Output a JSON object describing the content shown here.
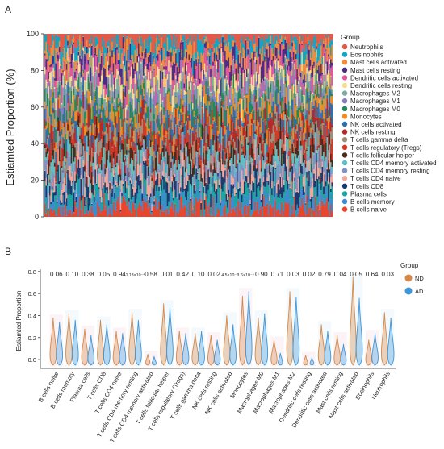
{
  "panelA": {
    "label": "A",
    "ylabel": "Estiamted Proportion (%)",
    "yticks": [
      "0",
      "20",
      "40",
      "60",
      "80",
      "100"
    ],
    "legend_title": "Group",
    "chart_data": {
      "type": "bar",
      "stacked": true,
      "samples": 240,
      "ylim": [
        0,
        100
      ],
      "note_values": "per-sample stacked proportions, approximately uniform mix across 22 cell types",
      "series": [
        {
          "name": "Neutrophils",
          "color": "#e15a4a"
        },
        {
          "name": "Eosinophils",
          "color": "#12a5c4"
        },
        {
          "name": "Mast cells activated",
          "color": "#ee8e3c"
        },
        {
          "name": "Mast cells resting",
          "color": "#4b2d83"
        },
        {
          "name": "Dendritic cells activated",
          "color": "#e2589a"
        },
        {
          "name": "Dendritic cells resting",
          "color": "#f5dc8f"
        },
        {
          "name": "Macrophages M2",
          "color": "#7faaa3"
        },
        {
          "name": "Macrophages M1",
          "color": "#8580c0"
        },
        {
          "name": "Macrophages M0",
          "color": "#25885a"
        },
        {
          "name": "Monocytes",
          "color": "#f08c1e"
        },
        {
          "name": "NK cells activated",
          "color": "#2d6fae"
        },
        {
          "name": "NK cells resting",
          "color": "#b22a2a"
        },
        {
          "name": "T cells gamma delta",
          "color": "#9c9079"
        },
        {
          "name": "T cells regulatory (Tregs)",
          "color": "#d03a27"
        },
        {
          "name": "T cells follicular helper",
          "color": "#4a2b1c"
        },
        {
          "name": "T cells CD4 memory activated",
          "color": "#5fc0c3"
        },
        {
          "name": "T cells CD4 memory resting",
          "color": "#7f92c3"
        },
        {
          "name": "T cells CD4 naive",
          "color": "#f3a79a"
        },
        {
          "name": "T cells CD8",
          "color": "#20386d"
        },
        {
          "name": "Plasma cells",
          "color": "#1ba4a0"
        },
        {
          "name": "B cells memory",
          "color": "#3c8ccf"
        },
        {
          "name": "B cells naive",
          "color": "#e8452c"
        }
      ]
    }
  },
  "panelB": {
    "label": "B",
    "ylabel": "Estiamted Proportion",
    "yticks": [
      "0.0",
      "0.2",
      "0.4",
      "0.6",
      "0.8"
    ],
    "legend_title": "Group",
    "chart_data": {
      "type": "violin",
      "ylim": [
        -0.08,
        0.85
      ],
      "groups": [
        {
          "name": "ND",
          "color": "#d4894a"
        },
        {
          "name": "AD",
          "color": "#3f97d8"
        }
      ],
      "categories": [
        {
          "name": "B cells naive",
          "p": "0.06",
          "max": [
            0.38,
            0.34
          ]
        },
        {
          "name": "B cells memory",
          "p": "0.10",
          "max": [
            0.42,
            0.36
          ]
        },
        {
          "name": "Plasma cells",
          "p": "0.38",
          "max": [
            0.28,
            0.22
          ]
        },
        {
          "name": "T cells CD8",
          "p": "0.05",
          "max": [
            0.36,
            0.32
          ]
        },
        {
          "name": "T cells CD4 naive",
          "p": "0.94",
          "max": [
            0.26,
            0.24
          ]
        },
        {
          "name": "T cells CD4 memory resting",
          "p": "1.13×10⁻⁴",
          "max": [
            0.43,
            0.36
          ]
        },
        {
          "name": "T cells CD4 memory activated",
          "p": "0.58",
          "max": [
            0.05,
            0.03
          ]
        },
        {
          "name": "T cells follicular helper",
          "p": "0.01",
          "max": [
            0.51,
            0.48
          ]
        },
        {
          "name": "T cells regulatory (Tregs)",
          "p": "0.42",
          "max": [
            0.26,
            0.24
          ]
        },
        {
          "name": "T cells gamma delta",
          "p": "0.10",
          "max": [
            0.24,
            0.26
          ]
        },
        {
          "name": "NK cells resting",
          "p": "0.02",
          "max": [
            0.22,
            0.18
          ]
        },
        {
          "name": "NK cells activated",
          "p": "4.5×10⁻⁵",
          "max": [
            0.4,
            0.32
          ]
        },
        {
          "name": "Monocytes",
          "p": "1.6×10⁻⁴",
          "max": [
            0.58,
            0.62
          ]
        },
        {
          "name": "Macrophages M0",
          "p": "0.90",
          "max": [
            0.38,
            0.42
          ]
        },
        {
          "name": "Macrophages M1",
          "p": "0.71",
          "max": [
            0.18,
            0.06
          ]
        },
        {
          "name": "Macrophages M2",
          "p": "0.03",
          "max": [
            0.62,
            0.57
          ]
        },
        {
          "name": "Dendritic cells resting",
          "p": "0.02",
          "max": [
            0.04,
            0.02
          ]
        },
        {
          "name": "Dendritic cells activated",
          "p": "0.79",
          "max": [
            0.32,
            0.26
          ]
        },
        {
          "name": "Mast cells resting",
          "p": "0.04",
          "max": [
            0.22,
            0.14
          ]
        },
        {
          "name": "Mast cells activated",
          "p": "0.05",
          "max": [
            0.75,
            0.56
          ]
        },
        {
          "name": "Eosinophils",
          "p": "0.64",
          "max": [
            0.18,
            0.24
          ]
        },
        {
          "name": "Neutrophils",
          "p": "0.03",
          "max": [
            0.43,
            0.38
          ]
        }
      ]
    }
  }
}
